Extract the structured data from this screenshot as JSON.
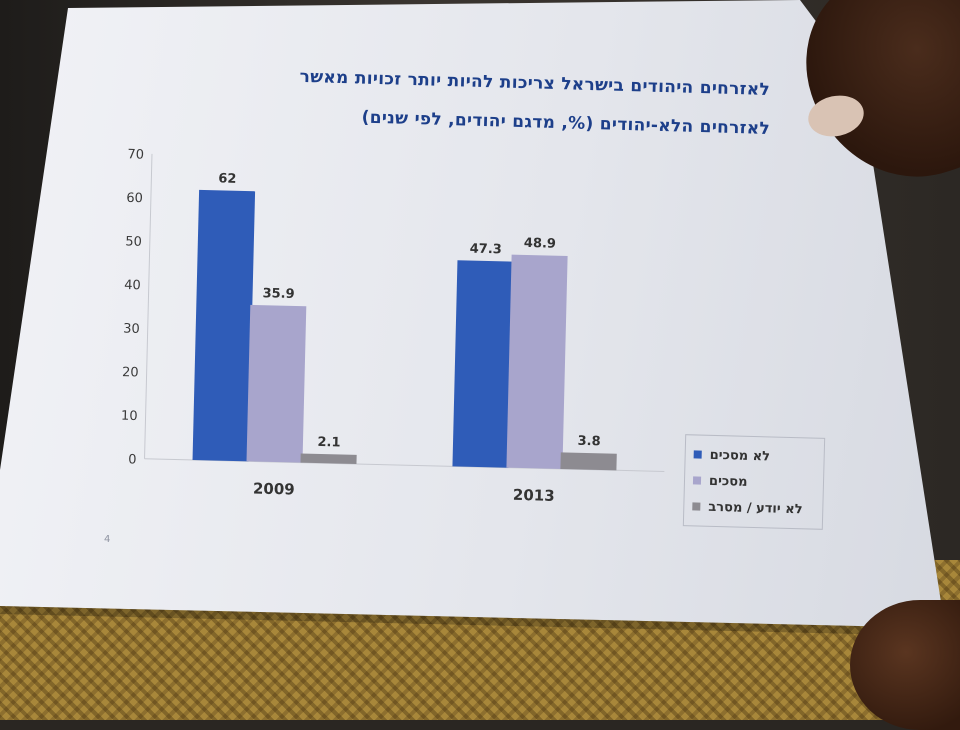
{
  "chart_data": {
    "type": "bar",
    "title": "לאזרחים היהודים בישראל צריכות להיות יותר זכויות מאשר",
    "subtitle": "לאזרחים הלא-יהודים (%, מדגם יהודים, לפי שנים)",
    "categories": [
      "2009",
      "2013"
    ],
    "series": [
      {
        "name": "לא מסכים",
        "values": [
          62,
          47.3
        ],
        "color": "#2f5cb8"
      },
      {
        "name": "מסכים",
        "values": [
          35.9,
          48.9
        ],
        "color": "#a8a5cc"
      },
      {
        "name": "לא יודע / מסרב",
        "values": [
          2.1,
          3.8
        ],
        "color": "#8d8b91"
      }
    ],
    "data_labels": [
      [
        "62",
        "47.3"
      ],
      [
        "35.9",
        "48.9"
      ],
      [
        "2.1",
        "3.8"
      ]
    ],
    "y_ticks": [
      "0",
      "10",
      "20",
      "30",
      "40",
      "50",
      "60",
      "70"
    ],
    "ylim": [
      0,
      70
    ],
    "grid": false,
    "legend_position": "right",
    "xlabel": "",
    "ylabel": ""
  },
  "page_number": "4"
}
